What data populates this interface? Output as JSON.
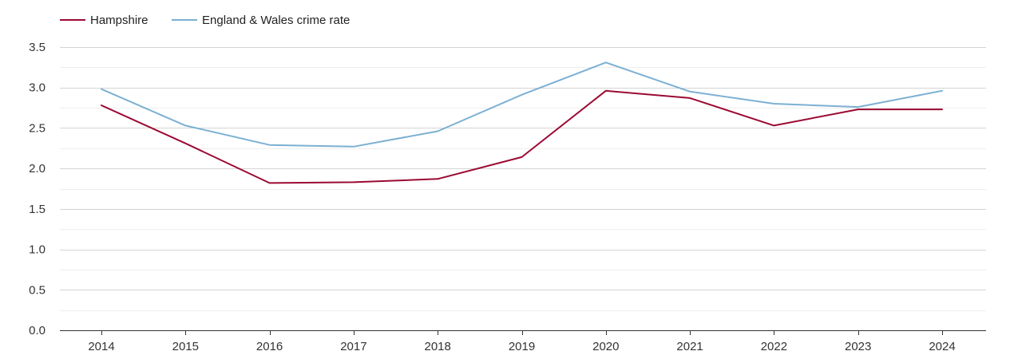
{
  "chart_data": {
    "type": "line",
    "title": "",
    "xlabel": "",
    "ylabel": "",
    "x": [
      "2014",
      "2015",
      "2016",
      "2017",
      "2018",
      "2019",
      "2020",
      "2021",
      "2022",
      "2023",
      "2024"
    ],
    "ylim": [
      0,
      3.5
    ],
    "yticks": [
      "0.0",
      "0.5",
      "1.0",
      "1.5",
      "2.0",
      "2.5",
      "3.0",
      "3.5"
    ],
    "ytick_values": [
      0,
      0.5,
      1.0,
      1.5,
      2.0,
      2.5,
      3.0,
      3.5
    ],
    "grid": true,
    "legend_position": "top-left",
    "series": [
      {
        "name": "Hampshire",
        "color": "#9b0a33",
        "values": [
          2.78,
          2.31,
          1.82,
          1.83,
          1.87,
          2.14,
          2.96,
          2.87,
          2.53,
          2.73,
          2.73
        ]
      },
      {
        "name": "England & Wales crime rate",
        "color": "#7cb0d3",
        "values": [
          2.98,
          2.53,
          2.29,
          2.27,
          2.46,
          2.91,
          3.31,
          2.95,
          2.8,
          2.76,
          2.96
        ]
      }
    ]
  }
}
